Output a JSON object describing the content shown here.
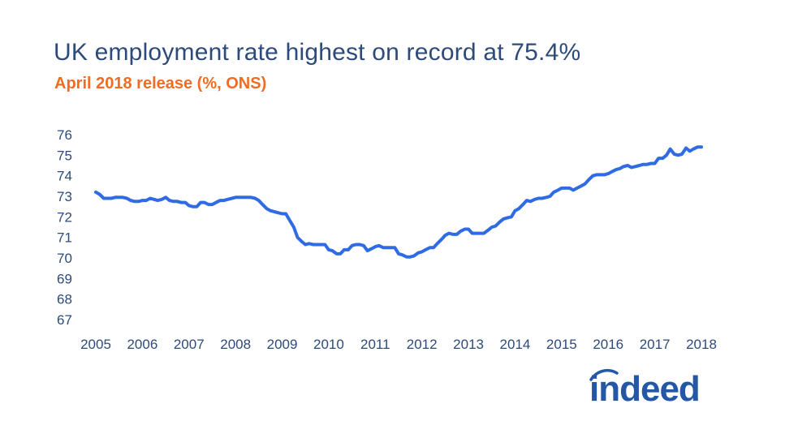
{
  "chart_data": {
    "type": "line",
    "title": "UK employment rate highest on record at 75.4%",
    "subtitle": "April 2018 release (%, ONS)",
    "xlabel": "",
    "ylabel": "",
    "xlim": [
      2005,
      2018.1
    ],
    "ylim": [
      67,
      76
    ],
    "x_ticks": [
      "2005",
      "2006",
      "2007",
      "2008",
      "2009",
      "2010",
      "2011",
      "2012",
      "2013",
      "2014",
      "2015",
      "2016",
      "2017",
      "2018"
    ],
    "y_ticks": [
      "67",
      "68",
      "69",
      "70",
      "71",
      "72",
      "73",
      "74",
      "75",
      "76"
    ],
    "grid": false,
    "legend": "none",
    "series": [
      {
        "color": "#2f6be3",
        "x": [
          2005.0,
          2005.08,
          2005.17,
          2005.25,
          2005.33,
          2005.42,
          2005.5,
          2005.58,
          2005.67,
          2005.75,
          2005.83,
          2005.92,
          2006.0,
          2006.08,
          2006.17,
          2006.25,
          2006.33,
          2006.42,
          2006.5,
          2006.58,
          2006.67,
          2006.75,
          2006.83,
          2006.92,
          2007.0,
          2007.08,
          2007.17,
          2007.25,
          2007.33,
          2007.42,
          2007.5,
          2007.58,
          2007.67,
          2007.75,
          2007.83,
          2007.92,
          2008.0,
          2008.08,
          2008.17,
          2008.25,
          2008.33,
          2008.42,
          2008.5,
          2008.58,
          2008.67,
          2008.75,
          2008.83,
          2008.92,
          2009.0,
          2009.08,
          2009.17,
          2009.25,
          2009.33,
          2009.42,
          2009.5,
          2009.58,
          2009.67,
          2009.75,
          2009.83,
          2009.92,
          2010.0,
          2010.08,
          2010.17,
          2010.25,
          2010.33,
          2010.42,
          2010.5,
          2010.58,
          2010.67,
          2010.75,
          2010.83,
          2010.92,
          2011.0,
          2011.08,
          2011.17,
          2011.25,
          2011.33,
          2011.42,
          2011.5,
          2011.58,
          2011.67,
          2011.75,
          2011.83,
          2011.92,
          2012.0,
          2012.08,
          2012.17,
          2012.25,
          2012.33,
          2012.42,
          2012.5,
          2012.58,
          2012.67,
          2012.75,
          2012.83,
          2012.92,
          2013.0,
          2013.08,
          2013.17,
          2013.25,
          2013.33,
          2013.42,
          2013.5,
          2013.58,
          2013.67,
          2013.75,
          2013.83,
          2013.92,
          2014.0,
          2014.08,
          2014.17,
          2014.25,
          2014.33,
          2014.42,
          2014.5,
          2014.58,
          2014.67,
          2014.75,
          2014.83,
          2014.92,
          2015.0,
          2015.08,
          2015.17,
          2015.25,
          2015.33,
          2015.42,
          2015.5,
          2015.58,
          2015.67,
          2015.75,
          2015.83,
          2015.92,
          2016.0,
          2016.08,
          2016.17,
          2016.25,
          2016.33,
          2016.42,
          2016.5,
          2016.58,
          2016.67,
          2016.75,
          2016.83,
          2016.92,
          2017.0,
          2017.08,
          2017.17,
          2017.25,
          2017.33,
          2017.42,
          2017.5,
          2017.58,
          2017.67,
          2017.75,
          2017.83,
          2017.92,
          2018.0
        ],
        "y": [
          73.2,
          73.1,
          72.9,
          72.9,
          72.9,
          72.95,
          72.95,
          72.95,
          72.9,
          72.8,
          72.75,
          72.75,
          72.8,
          72.8,
          72.9,
          72.85,
          72.8,
          72.85,
          72.95,
          72.8,
          72.75,
          72.75,
          72.7,
          72.7,
          72.55,
          72.5,
          72.5,
          72.7,
          72.7,
          72.6,
          72.6,
          72.7,
          72.8,
          72.8,
          72.85,
          72.9,
          72.95,
          72.95,
          72.95,
          72.95,
          72.95,
          72.9,
          72.8,
          72.6,
          72.4,
          72.3,
          72.25,
          72.2,
          72.15,
          72.15,
          71.8,
          71.5,
          71.0,
          70.8,
          70.65,
          70.7,
          70.65,
          70.65,
          70.65,
          70.65,
          70.4,
          70.35,
          70.2,
          70.2,
          70.4,
          70.4,
          70.6,
          70.65,
          70.65,
          70.6,
          70.35,
          70.45,
          70.55,
          70.6,
          70.5,
          70.5,
          70.5,
          70.5,
          70.2,
          70.15,
          70.05,
          70.05,
          70.1,
          70.25,
          70.3,
          70.4,
          70.5,
          70.5,
          70.7,
          70.9,
          71.1,
          71.2,
          71.15,
          71.15,
          71.3,
          71.4,
          71.4,
          71.2,
          71.2,
          71.2,
          71.2,
          71.35,
          71.5,
          71.55,
          71.75,
          71.9,
          71.95,
          72.0,
          72.3,
          72.4,
          72.6,
          72.8,
          72.75,
          72.85,
          72.9,
          72.9,
          72.95,
          73.0,
          73.2,
          73.3,
          73.4,
          73.4,
          73.4,
          73.3,
          73.4,
          73.5,
          73.6,
          73.8,
          74.0,
          74.05,
          74.05,
          74.05,
          74.1,
          74.2,
          74.3,
          74.35,
          74.45,
          74.5,
          74.4,
          74.45,
          74.5,
          74.55,
          74.55,
          74.6,
          74.6,
          74.85,
          74.85,
          75.0,
          75.3,
          75.05,
          75.0,
          75.05,
          75.35,
          75.2,
          75.3,
          75.4,
          75.4
        ]
      }
    ]
  },
  "brand": {
    "logo_text": "indeed",
    "logo_color": "#2557a7"
  },
  "colors": {
    "title": "#2d4a7a",
    "subtitle": "#f26b22",
    "axis_text": "#2d4a7a",
    "line": "#2f6be3"
  }
}
